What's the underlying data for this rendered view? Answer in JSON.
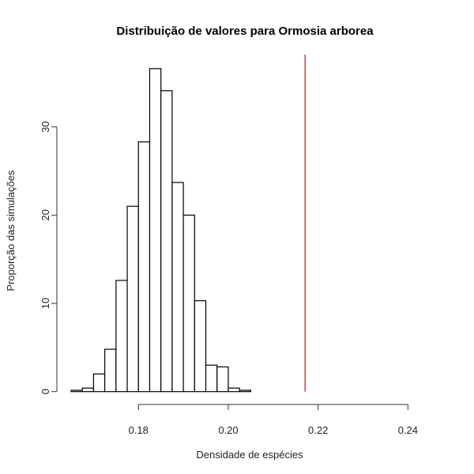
{
  "chart_data": {
    "type": "bar",
    "title": "Distribuição de valores para Ormosia arborea",
    "xlabel": "Densidade de espécies",
    "ylabel": "Proporção das simulações",
    "bin_edges": [
      0.165,
      0.1675,
      0.17,
      0.1725,
      0.175,
      0.1775,
      0.18,
      0.1825,
      0.185,
      0.1875,
      0.19,
      0.1925,
      0.195,
      0.1975,
      0.2,
      0.2025,
      0.205
    ],
    "bins": [
      {
        "from": 0.165,
        "to": 0.1675,
        "value": 0.15
      },
      {
        "from": 0.1675,
        "to": 0.17,
        "value": 0.4
      },
      {
        "from": 0.17,
        "to": 0.1725,
        "value": 2.0
      },
      {
        "from": 0.1725,
        "to": 0.175,
        "value": 4.8
      },
      {
        "from": 0.175,
        "to": 0.1775,
        "value": 12.6
      },
      {
        "from": 0.1775,
        "to": 0.18,
        "value": 21.0
      },
      {
        "from": 0.18,
        "to": 0.1825,
        "value": 28.3
      },
      {
        "from": 0.1825,
        "to": 0.185,
        "value": 36.6
      },
      {
        "from": 0.185,
        "to": 0.1875,
        "value": 34.1
      },
      {
        "from": 0.1875,
        "to": 0.19,
        "value": 23.7
      },
      {
        "from": 0.19,
        "to": 0.1925,
        "value": 20.0
      },
      {
        "from": 0.1925,
        "to": 0.195,
        "value": 10.3
      },
      {
        "from": 0.195,
        "to": 0.1975,
        "value": 3.0
      },
      {
        "from": 0.1975,
        "to": 0.2,
        "value": 2.8
      },
      {
        "from": 0.2,
        "to": 0.2025,
        "value": 0.4
      },
      {
        "from": 0.2025,
        "to": 0.205,
        "value": 0.15
      }
    ],
    "reference_line": {
      "x": 0.2171,
      "color": "#b5524a"
    },
    "xticks": [
      "0.18",
      "0.20",
      "0.22",
      "0.24"
    ],
    "xtick_values": [
      0.18,
      0.2,
      0.22,
      0.24
    ],
    "yticks": [
      "0",
      "10",
      "20",
      "30"
    ],
    "ytick_values": [
      0,
      10,
      20,
      30
    ],
    "xlim": [
      0.165,
      0.245
    ],
    "ylim": [
      0,
      37
    ],
    "grid": false,
    "bar_fill": "#ffffff",
    "bar_stroke": "#000000"
  }
}
